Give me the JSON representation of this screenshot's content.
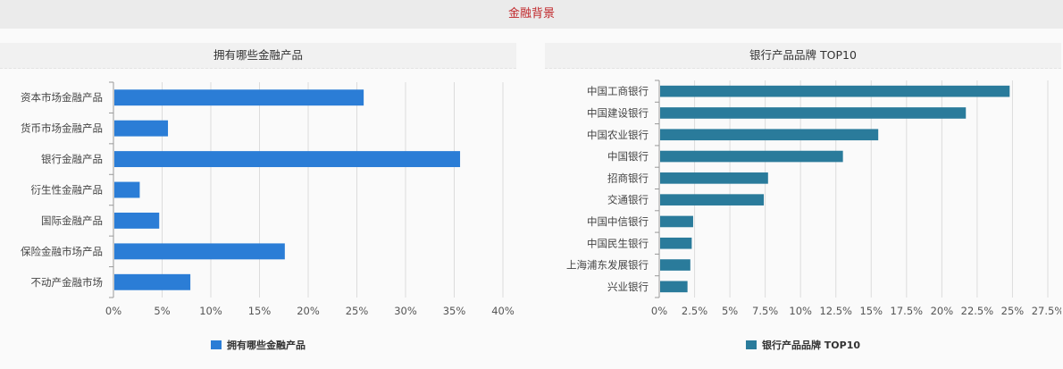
{
  "header": {
    "title": "金融背景"
  },
  "charts": [
    {
      "panel_title": "拥有哪些金融产品",
      "color": "#2b7dd6",
      "legend": "拥有哪些金融产品",
      "chart_data": {
        "type": "bar",
        "orientation": "horizontal",
        "title": "拥有哪些金融产品",
        "categories": [
          "资本市场金融产品",
          "货币市场金融产品",
          "银行金融产品",
          "衍生性金融产品",
          "国际金融产品",
          "保险金融市场产品",
          "不动产金融市场"
        ],
        "series": [
          {
            "name": "拥有哪些金融产品",
            "values": [
              25.7,
              5.6,
              35.6,
              2.7,
              4.7,
              17.6,
              7.9
            ]
          }
        ],
        "xlim": [
          0,
          40
        ],
        "ticks": [
          "0%",
          "5%",
          "10%",
          "15%",
          "20%",
          "25%",
          "30%",
          "35%",
          "40%"
        ],
        "grid": true,
        "legend_position": "bottom"
      }
    },
    {
      "panel_title": "银行产品品牌 TOP10",
      "color": "#2a7b9b",
      "legend": "银行产品品牌 TOP10",
      "chart_data": {
        "type": "bar",
        "orientation": "horizontal",
        "title": "银行产品品牌 TOP10",
        "categories": [
          "中国工商银行",
          "中国建设银行",
          "中国农业银行",
          "中国银行",
          "招商银行",
          "交通银行",
          "中国中信银行",
          "中国民生银行",
          "上海浦东发展银行",
          "兴业银行"
        ],
        "series": [
          {
            "name": "银行产品品牌 TOP10",
            "values": [
              24.8,
              21.7,
              15.5,
              13.0,
              7.7,
              7.4,
              2.4,
              2.3,
              2.2,
              2.0
            ]
          }
        ],
        "xlim": [
          0,
          27.5
        ],
        "ticks": [
          "0%",
          "2.5%",
          "5%",
          "7.5%",
          "10%",
          "12.5%",
          "15%",
          "17.5%",
          "20%",
          "22.5%",
          "25%",
          "27.5%"
        ],
        "grid": true,
        "legend_position": "bottom"
      }
    }
  ]
}
